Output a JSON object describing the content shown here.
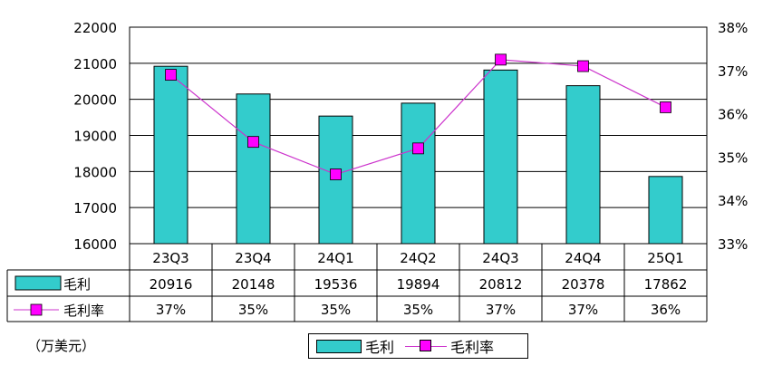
{
  "chart_data": {
    "type": "bar",
    "categories": [
      "23Q3",
      "23Q4",
      "24Q1",
      "24Q2",
      "24Q3",
      "24Q4",
      "25Q1"
    ],
    "series": [
      {
        "name": "毛利",
        "type": "bar",
        "axis": "left",
        "values": [
          20916,
          20148,
          19536,
          19894,
          20812,
          20378,
          17862
        ]
      },
      {
        "name": "毛利率",
        "type": "line",
        "axis": "right",
        "values": [
          36.9,
          35.35,
          34.6,
          35.2,
          37.25,
          37.1,
          36.15
        ],
        "labels": [
          "37%",
          "35%",
          "35%",
          "35%",
          "37%",
          "37%",
          "36%"
        ]
      }
    ],
    "ylim": [
      16000,
      22000
    ],
    "y_ticks": [
      "16000",
      "17000",
      "18000",
      "19000",
      "20000",
      "21000",
      "22000"
    ],
    "y2lim": [
      33,
      38
    ],
    "y2_ticks": [
      "33%",
      "34%",
      "35%",
      "36%",
      "37%",
      "38%"
    ],
    "unit_note": "（万美元）",
    "grid": true,
    "legend": "bottom-center",
    "colors": {
      "bar": "#33CCCC",
      "line": "#CC33CC",
      "marker": "#FF00FF"
    }
  }
}
